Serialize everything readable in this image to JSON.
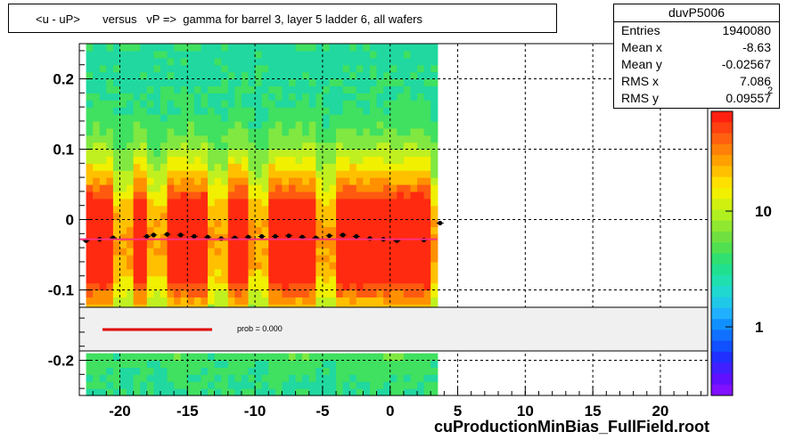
{
  "title": "<u - uP>       versus   vP =>  gamma for barrel 3, layer 5 ladder 6, all wafers",
  "stats": {
    "name": "duvP5006",
    "rows": [
      {
        "label": "Entries",
        "value": "1940080"
      },
      {
        "label": "Mean x",
        "value": "-8.63"
      },
      {
        "label": "Mean y",
        "value": "-0.02567"
      },
      {
        "label": "RMS x",
        "value": "7.086"
      },
      {
        "label": "RMS y",
        "value": "0.09557"
      }
    ]
  },
  "fit_legend": {
    "text": "prob = 0.000",
    "color": "#e00000"
  },
  "footer": "cuProductionMinBias_FullField.root",
  "colorbar": {
    "labels": [
      "1",
      "10"
    ],
    "exponent_label": "2"
  },
  "chart_data": {
    "type": "heatmap",
    "xlim": [
      -23,
      23.5
    ],
    "ylim": [
      -0.25,
      0.25
    ],
    "xticks": [
      "-20",
      "-15",
      "-10",
      "-5",
      "0",
      "5",
      "10",
      "15",
      "20"
    ],
    "yticks": [
      "-0.2",
      "-0.1",
      "0",
      "0.1",
      "0.2"
    ],
    "grid": true,
    "filled_x_range": [
      -22.5,
      3.5
    ],
    "profile_points": {
      "x": [
        -22.5,
        -21.5,
        -20.5,
        -18,
        -17.5,
        -16.5,
        -15.5,
        -14.5,
        -13.5,
        -12.5,
        -11.5,
        -10.5,
        -9.5,
        -8.5,
        -7.5,
        -6.5,
        -5.5,
        -4.5,
        -3.5,
        -2.5,
        -1.5,
        -0.5,
        0.5,
        2.5,
        3.7
      ],
      "y": [
        -0.03,
        -0.028,
        -0.026,
        -0.024,
        -0.022,
        -0.021,
        -0.022,
        -0.024,
        -0.025,
        -0.027,
        -0.026,
        -0.025,
        -0.024,
        -0.024,
        -0.023,
        -0.025,
        -0.026,
        -0.023,
        -0.022,
        -0.024,
        -0.027,
        -0.028,
        -0.03,
        -0.029,
        -0.005
      ]
    },
    "fit_line": {
      "x": [
        -23,
        3.5
      ],
      "y": [
        -0.028,
        -0.028
      ]
    }
  }
}
